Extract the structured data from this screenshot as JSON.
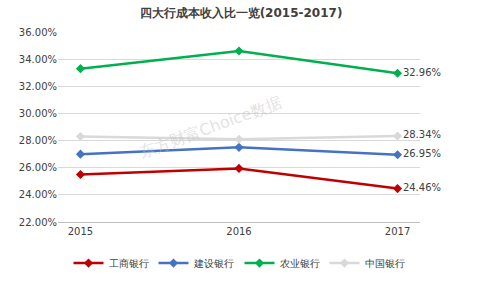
{
  "chart_data": {
    "type": "line",
    "title": "四大行成本收入比一览(2015-2017)",
    "categories": [
      "2015",
      "2016",
      "2017"
    ],
    "series": [
      {
        "name": "工商银行",
        "color": "#c00000",
        "values": [
          25.5,
          25.95,
          24.46
        ],
        "value_labels": [
          null,
          null,
          "24.46%"
        ]
      },
      {
        "name": "建设银行",
        "color": "#4472c4",
        "values": [
          27.0,
          27.5,
          26.95
        ],
        "value_labels": [
          null,
          null,
          "26.95%"
        ]
      },
      {
        "name": "农业银行",
        "color": "#00b050",
        "values": [
          33.3,
          34.6,
          32.96
        ],
        "value_labels": [
          null,
          null,
          "32.96%"
        ]
      },
      {
        "name": "中国银行",
        "color": "#d9d9d9",
        "values": [
          28.3,
          28.1,
          28.34
        ],
        "value_labels": [
          null,
          null,
          "28.34%"
        ]
      }
    ],
    "ylim": [
      22,
      36
    ],
    "yticks": [
      {
        "value": 22,
        "label": "22.00%"
      },
      {
        "value": 24,
        "label": "24.00%"
      },
      {
        "value": 26,
        "label": "26.00%"
      },
      {
        "value": 28,
        "label": "28.00%"
      },
      {
        "value": 30,
        "label": "30.00%"
      },
      {
        "value": 32,
        "label": "32.00%"
      },
      {
        "value": 34,
        "label": "34.00%"
      },
      {
        "value": 36,
        "label": "36.00%"
      }
    ],
    "grid": true,
    "legend": "bottom",
    "marker": "diamond",
    "data_labels": true,
    "annotations": [
      "东方财富Choice数据"
    ]
  }
}
